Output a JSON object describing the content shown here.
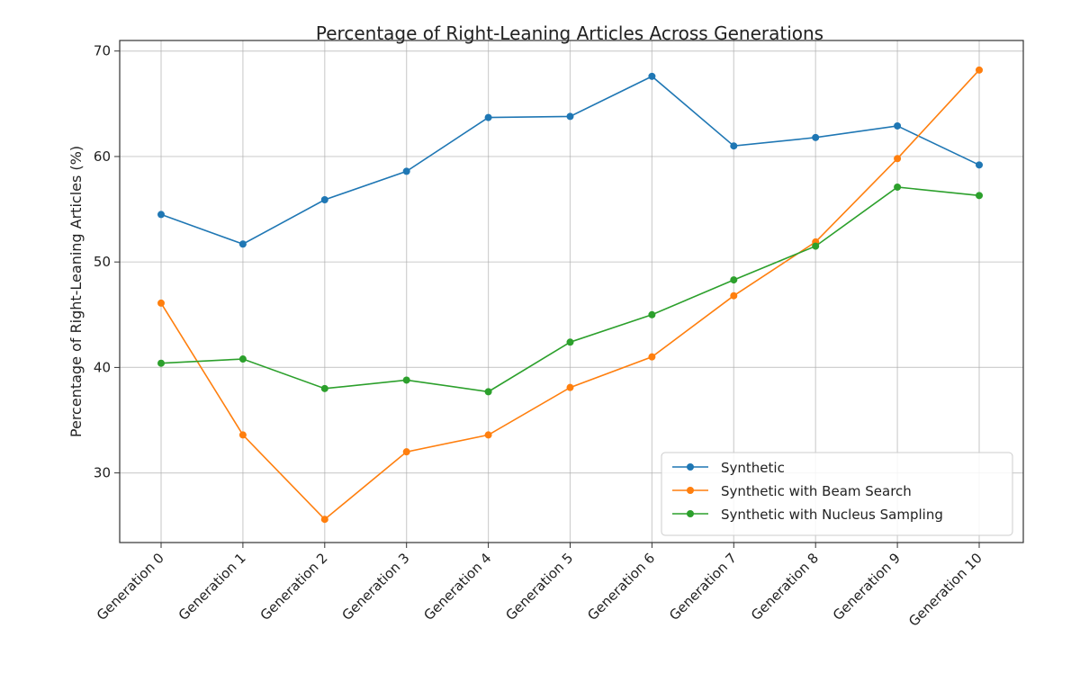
{
  "chart_data": {
    "type": "line",
    "title": "Percentage of Right-Leaning Articles Across Generations",
    "xlabel": "",
    "ylabel": "Percentage of Right-Leaning Articles (%)",
    "categories": [
      "Generation 0",
      "Generation 1",
      "Generation 2",
      "Generation 3",
      "Generation 4",
      "Generation 5",
      "Generation 6",
      "Generation 7",
      "Generation 8",
      "Generation 9",
      "Generation 10"
    ],
    "ylim": [
      23.4,
      71.0
    ],
    "yticks": [
      30,
      40,
      50,
      60,
      70
    ],
    "grid": true,
    "legend_position": "lower-right",
    "series": [
      {
        "name": "Synthetic",
        "color": "#1f77b4",
        "values": [
          54.5,
          51.7,
          55.9,
          58.6,
          63.7,
          63.8,
          67.6,
          61.0,
          61.8,
          62.9,
          59.2
        ]
      },
      {
        "name": "Synthetic with Beam Search",
        "color": "#ff7f0e",
        "values": [
          46.1,
          33.6,
          25.6,
          32.0,
          33.6,
          38.1,
          41.0,
          46.8,
          51.9,
          59.8,
          68.2
        ]
      },
      {
        "name": "Synthetic with Nucleus Sampling",
        "color": "#2ca02c",
        "values": [
          40.4,
          40.8,
          38.0,
          38.8,
          37.7,
          42.4,
          45.0,
          48.3,
          51.5,
          57.1,
          56.3
        ]
      }
    ]
  }
}
